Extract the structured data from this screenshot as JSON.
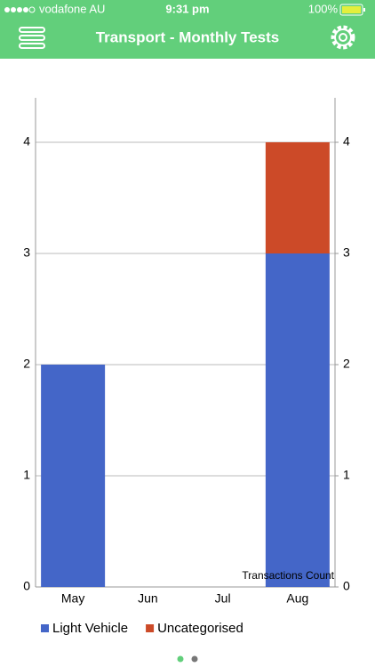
{
  "status_bar": {
    "carrier": "vodafone AU",
    "time": "9:31 pm",
    "battery": "100%"
  },
  "nav": {
    "title": "Transport - Monthly Tests"
  },
  "chart_data": {
    "type": "bar",
    "stacked": true,
    "categories": [
      "May",
      "Jun",
      "Jul",
      "Aug"
    ],
    "series": [
      {
        "name": "Light Vehicle",
        "color": "#4466c8",
        "values": [
          2,
          0,
          0,
          3
        ]
      },
      {
        "name": "Uncategorised",
        "color": "#cc4a28",
        "values": [
          0,
          0,
          0,
          1
        ]
      }
    ],
    "ylim": [
      0,
      4.4
    ],
    "yticks": [
      0,
      1,
      2,
      3,
      4
    ],
    "y2lim": [
      0,
      4.4
    ],
    "y2ticks": [
      0,
      1,
      2,
      3,
      4
    ],
    "grid": true,
    "legend": "bottom",
    "annotation": "Transactions Count"
  }
}
